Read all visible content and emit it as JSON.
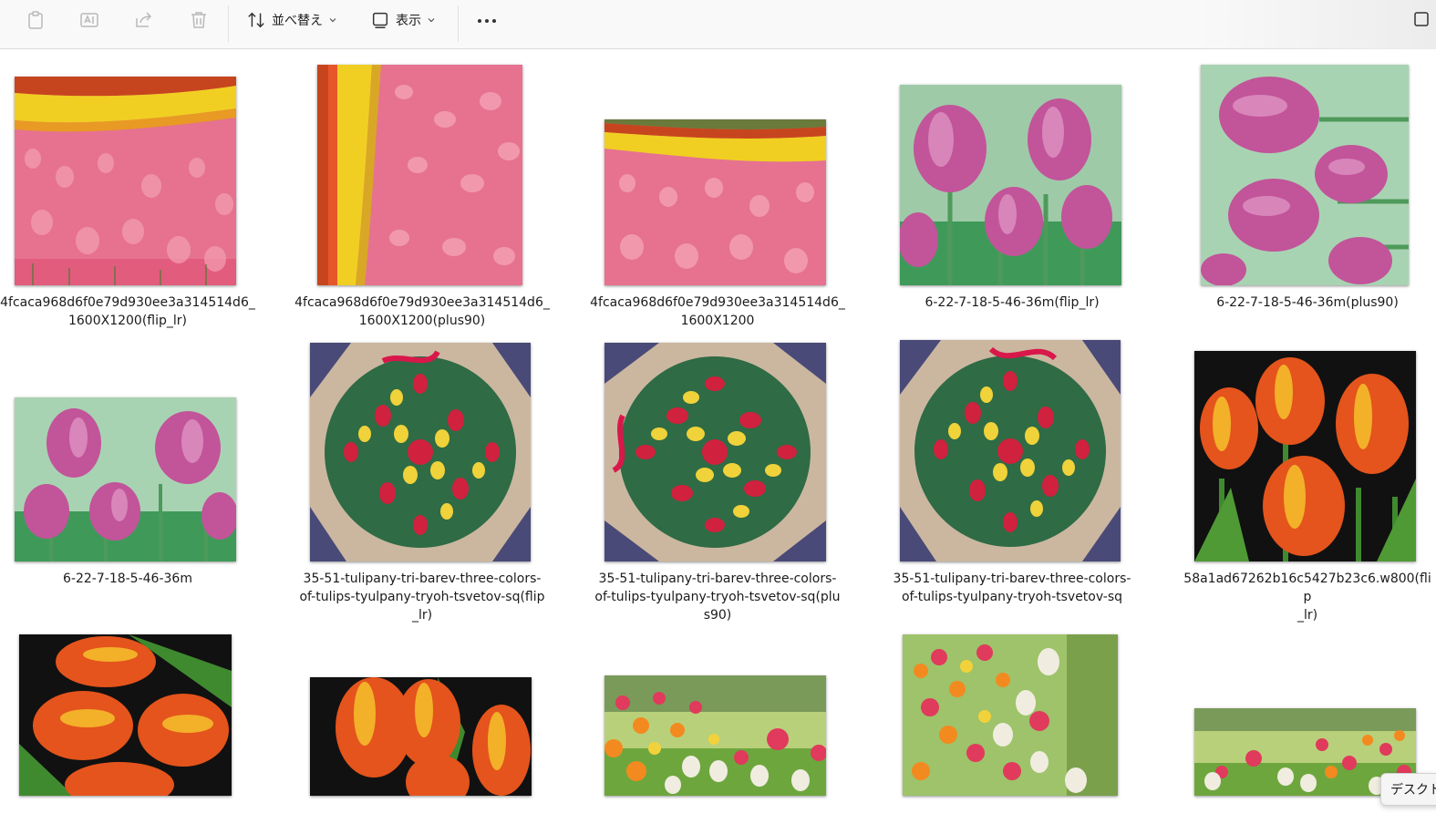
{
  "toolbar": {
    "sort_label": "並べ替え",
    "view_label": "表示",
    "more_label": "•••",
    "icons": [
      "paste-icon",
      "rename-icon",
      "share-icon",
      "delete-icon",
      "sort-icon",
      "view-icon",
      "chevron-down-icon",
      "more-icon",
      "details-pane-icon"
    ]
  },
  "files": [
    {
      "name": "4fcaca968d6f0e79d930ee3a314514d6_\n1600X1200(flip_lr)"
    },
    {
      "name": "4fcaca968d6f0e79d930ee3a314514d6_\n1600X1200(plus90)"
    },
    {
      "name": "4fcaca968d6f0e79d930ee3a314514d6_\n1600X1200"
    },
    {
      "name": "6-22-7-18-5-46-36m(flip_lr)"
    },
    {
      "name": "6-22-7-18-5-46-36m(plus90)"
    },
    {
      "name": "6-22-7-18-5-46-36m"
    },
    {
      "name": "35-51-tulipany-tri-barev-three-colors-\nof-tulips-tyulpany-tryoh-tsvetov-sq(flip\n_lr)"
    },
    {
      "name": "35-51-tulipany-tri-barev-three-colors-\nof-tulips-tyulpany-tryoh-tsvetov-sq(plu\ns90)"
    },
    {
      "name": "35-51-tulipany-tri-barev-three-colors-\nof-tulips-tyulpany-tryoh-tsvetov-sq"
    },
    {
      "name": "58a1ad67262b16c5427b23c6.w800(flip\n_lr)"
    }
  ],
  "tooltip": {
    "text": "デスクトップ"
  },
  "colors": {
    "pink_tulip": "#e8708e",
    "yellow_band": "#f2d21c",
    "red_band": "#d8431f",
    "magenta_tulip": "#c2549a",
    "bouquet_green": "#2f6b45",
    "bouquet_red": "#d0213e",
    "orange_tulip": "#e4541c",
    "black_bg": "#111111",
    "meadow_green": "#8ab84c"
  }
}
